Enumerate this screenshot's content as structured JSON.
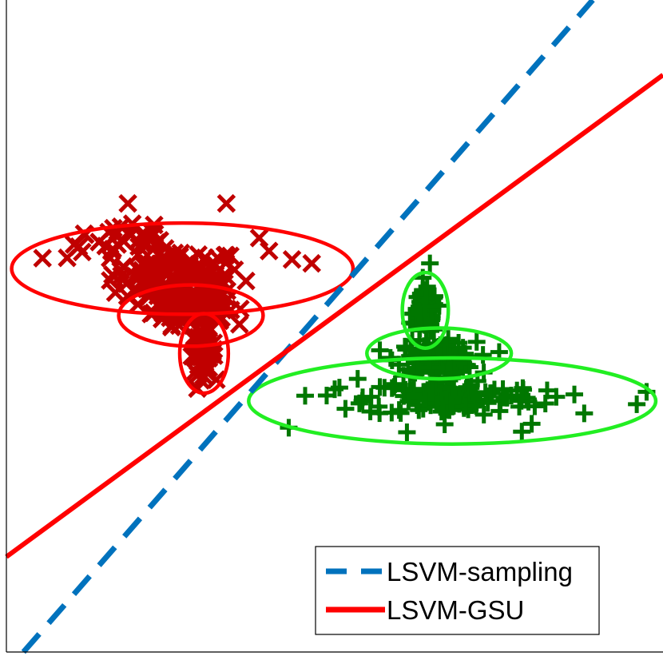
{
  "chart_data": {
    "type": "scatter",
    "title": "",
    "xlabel": "",
    "ylabel": "",
    "xlim": [
      0,
      100
    ],
    "ylim": [
      0,
      100
    ],
    "grid": false,
    "tick_labels": false,
    "legend_placement": "bottom-right",
    "colors": {
      "class_neg_points": "#c00000",
      "class_neg_ellipses": "#ff0000",
      "class_pos_points": "#007700",
      "class_pos_ellipses": "#22ee22",
      "lsvm_sampling": "#0072bd",
      "lsvm_gsu": "#ff0000"
    },
    "legend": [
      {
        "label": "LSVM-sampling",
        "style": "dashed",
        "color": "#0072bd"
      },
      {
        "label": "LSVM-GSU",
        "style": "solid",
        "color": "#ff0000"
      }
    ],
    "lines": [
      {
        "label": "LSVM-sampling",
        "style": "dashed",
        "points": [
          [
            2.6,
            0.0
          ],
          [
            89.3,
            100.0
          ]
        ]
      },
      {
        "label": "LSVM-GSU",
        "style": "solid",
        "points": [
          [
            0.0,
            14.6
          ],
          [
            100.0,
            88.5
          ]
        ]
      }
    ],
    "ellipses": [
      {
        "class": "negative",
        "center": [
          26.8,
          58.8
        ],
        "radii": [
          26.0,
          7.0
        ]
      },
      {
        "class": "negative",
        "center": [
          28.1,
          51.6
        ],
        "radii": [
          11.0,
          4.7
        ]
      },
      {
        "class": "negative",
        "center": [
          30.1,
          45.8
        ],
        "radii": [
          3.7,
          6.1
        ]
      },
      {
        "class": "positive",
        "center": [
          65.9,
          45.8
        ],
        "radii": [
          11.0,
          3.9
        ]
      },
      {
        "class": "positive",
        "center": [
          63.8,
          52.4
        ],
        "radii": [
          3.5,
          5.8
        ]
      },
      {
        "class": "positive",
        "center": [
          67.9,
          38.5
        ],
        "radii": [
          31.0,
          6.6
        ]
      }
    ],
    "series": [
      {
        "name": "",
        "marker": "x",
        "clusters": [
          {
            "center": [
              26.0,
              58.0
            ],
            "spread": [
              9.0,
              3.5
            ],
            "count": 110
          },
          {
            "center": [
              28.0,
              53.0
            ],
            "spread": [
              5.0,
              2.5
            ],
            "count": 140
          },
          {
            "center": [
              30.0,
              46.0
            ],
            "spread": [
              1.6,
              3.0
            ],
            "count": 70
          },
          {
            "center": [
              18.0,
              63.0
            ],
            "spread": [
              8.0,
              2.5
            ],
            "count": 30
          }
        ],
        "extra_points": [
          [
            18.5,
            68.8
          ],
          [
            33.5,
            68.8
          ],
          [
            5.5,
            60.4
          ],
          [
            10.3,
            62.5
          ],
          [
            12.0,
            64.0
          ],
          [
            43.5,
            60.2
          ],
          [
            46.5,
            59.6
          ],
          [
            40.0,
            61.5
          ],
          [
            38.5,
            63.5
          ],
          [
            22.5,
            65.5
          ]
        ]
      },
      {
        "name": "",
        "marker": "+",
        "clusters": [
          {
            "center": [
              63.8,
              52.0
            ],
            "spread": [
              1.6,
              3.0
            ],
            "count": 110
          },
          {
            "center": [
              65.5,
              45.0
            ],
            "spread": [
              5.5,
              2.3
            ],
            "count": 130
          },
          {
            "center": [
              68.0,
              39.0
            ],
            "spread": [
              12.0,
              2.6
            ],
            "count": 130
          }
        ],
        "extra_points": [
          [
            64.5,
            59.6
          ],
          [
            43.0,
            34.4
          ],
          [
            45.5,
            39.3
          ],
          [
            50.0,
            40.3
          ],
          [
            53.5,
            41.9
          ],
          [
            96.0,
            38.0
          ],
          [
            97.5,
            39.9
          ],
          [
            88.0,
            36.6
          ],
          [
            86.5,
            39.5
          ],
          [
            80.0,
            35.0
          ],
          [
            78.5,
            33.8
          ],
          [
            61.0,
            33.7
          ]
        ]
      }
    ]
  }
}
